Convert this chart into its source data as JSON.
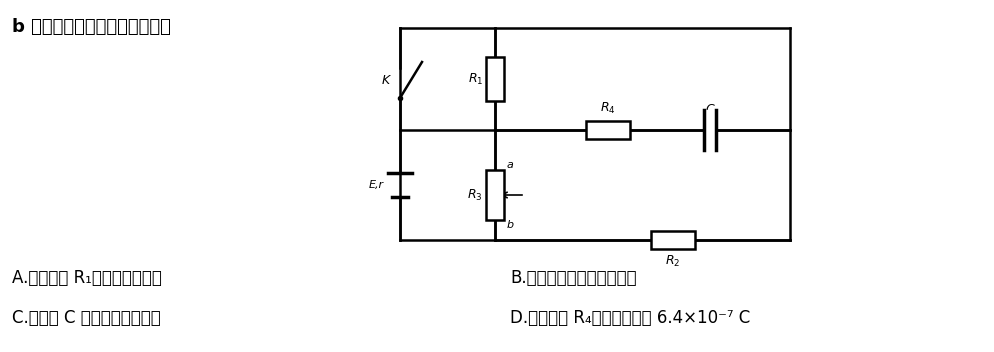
{
  "title_text": "b 端滑动时，下列说法正确的是",
  "option_A": "A.流过电阔 R₁的电流逐渐增大",
  "option_B": "B.电源的输出功率逐渐增大",
  "option_C": "C.电容器 C 两端电压逐渐增大",
  "option_D": "D.流过电阔 R₄的电荷量约为 6.4×10⁻⁷ C",
  "bg_color": "#ffffff",
  "text_color": "#000000"
}
